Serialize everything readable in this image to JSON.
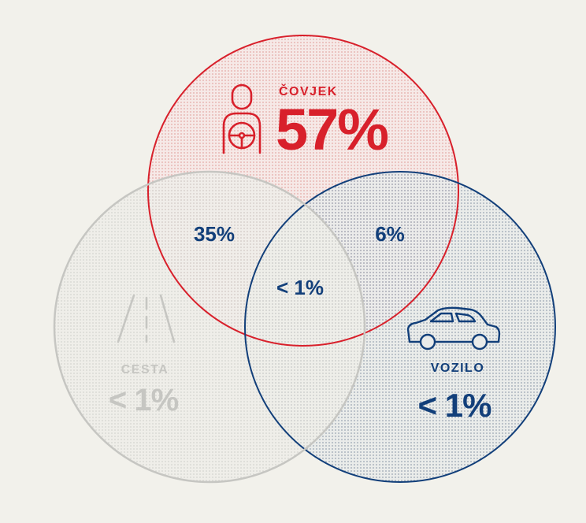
{
  "colors": {
    "background": "#f2f1eb",
    "human": "#d8202b",
    "vehicle": "#123f7a",
    "road": "#c6c6c2",
    "overlap_text": "#123f7a"
  },
  "human": {
    "label": "ČOVJEK",
    "value": "57%",
    "icon": "driver-steering-wheel-icon"
  },
  "road": {
    "label": "CESTA",
    "value": "< 1%",
    "icon": "road-lanes-icon"
  },
  "vehicle": {
    "label": "VOZILO",
    "value": "< 1%",
    "icon": "car-icon"
  },
  "overlaps": {
    "human_road": "35%",
    "human_vehicle": "6%",
    "all_three": "< 1%"
  }
}
